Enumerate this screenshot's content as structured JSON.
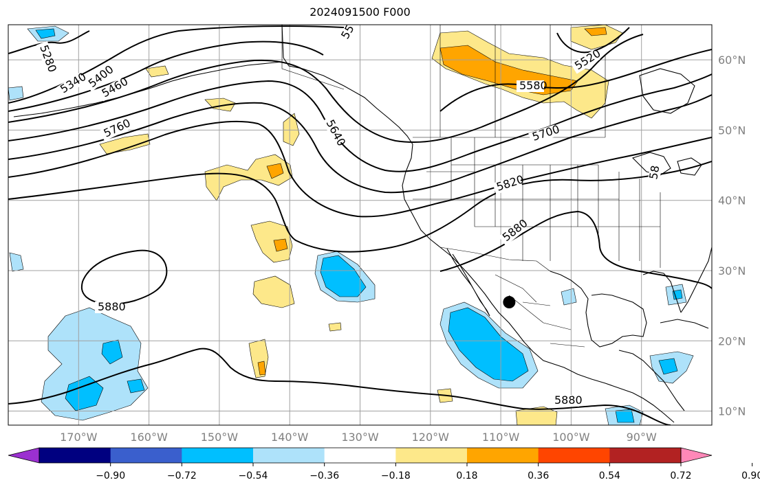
{
  "title": "2024091500 F000",
  "map": {
    "lon_range": [
      -180,
      -80
    ],
    "lat_range": [
      8,
      65
    ],
    "gridlines": true,
    "lon_labels": [
      "170°W",
      "160°W",
      "150°W",
      "140°W",
      "130°W",
      "120°W",
      "110°W",
      "100°W",
      "90°W"
    ],
    "lon_values": [
      -170,
      -160,
      -150,
      -140,
      -130,
      -120,
      -110,
      -100,
      -90
    ],
    "lat_labels": [
      "10°N",
      "20°N",
      "30°N",
      "40°N",
      "50°N",
      "60°N"
    ],
    "lat_values": [
      10,
      20,
      30,
      40,
      50,
      60
    ],
    "contour_labels": [
      "5280",
      "5340",
      "5400",
      "5460",
      "5520",
      "5580",
      "5640",
      "5700",
      "5760",
      "5820",
      "5880",
      "5880",
      "5880",
      "55",
      "58"
    ],
    "marker": {
      "lon": -108.8,
      "lat": 25.5,
      "color": "#000000"
    }
  },
  "colorbar": {
    "tick_labels": [
      "−0.90",
      "−0.72",
      "−0.54",
      "−0.36",
      "−0.18",
      "0.18",
      "0.36",
      "0.54",
      "0.72",
      "0.90"
    ],
    "colors": [
      "#9b30d0",
      "#000080",
      "#3a5fcd",
      "#00bfff",
      "#aee2fa",
      "#ffffff",
      "#fde88a",
      "#ffa500",
      "#ff4500",
      "#b22222",
      "#ff88b8"
    ],
    "extend": "both"
  }
}
